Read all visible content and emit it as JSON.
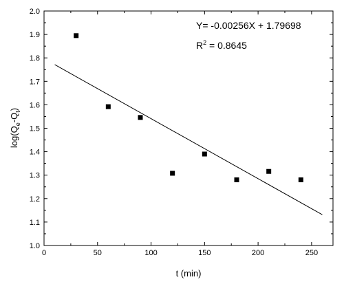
{
  "chart_data": {
    "type": "scatter",
    "xlabel": "t (min)",
    "ylabel": "log(Q",
    "ylabel_sub1": "e",
    "ylabel_mid": "-Q",
    "ylabel_sub2": "t",
    "ylabel_end": ")",
    "xlim": [
      0,
      270
    ],
    "ylim": [
      1.0,
      2.0
    ],
    "x_ticks": [
      0,
      50,
      100,
      150,
      200,
      250
    ],
    "y_ticks": [
      1.0,
      1.1,
      1.2,
      1.3,
      1.4,
      1.5,
      1.6,
      1.7,
      1.8,
      1.9,
      2.0
    ],
    "y_tick_labels": [
      "1.0",
      "1.1",
      "1.2",
      "1.3",
      "1.4",
      "1.5",
      "1.6",
      "1.7",
      "1.8",
      "1.9",
      "2.0"
    ],
    "x_tick_labels": [
      "0",
      "50",
      "100",
      "150",
      "200",
      "250"
    ],
    "series": [
      {
        "x": [
          30,
          60,
          90,
          120,
          150,
          180,
          210,
          240
        ],
        "y": [
          1.895,
          1.592,
          1.546,
          1.308,
          1.39,
          1.28,
          1.316,
          1.28
        ]
      }
    ],
    "fit_line": {
      "slope": -0.00256,
      "intercept": 1.79698,
      "x_range": [
        10,
        260
      ]
    },
    "annotations": {
      "equation": "Y=  -0.00256X + 1.79698",
      "r2_prefix": "R",
      "r2_sup": "2",
      "r2_value": " = 0.8645"
    },
    "grid": false,
    "colors": {
      "marker": "#000000",
      "line": "#000000",
      "axis": "#000000"
    }
  }
}
